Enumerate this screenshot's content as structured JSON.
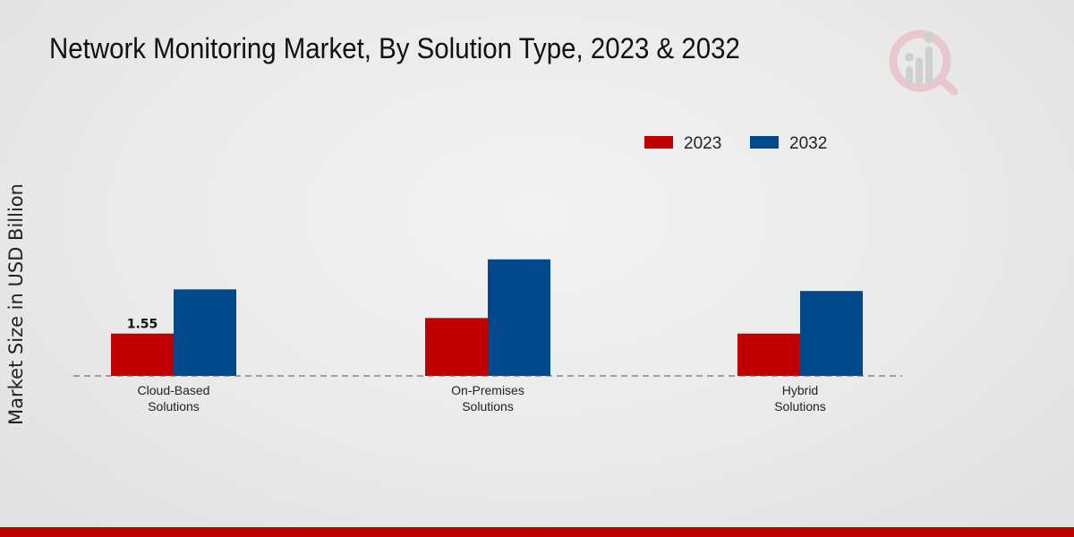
{
  "chart_data": {
    "type": "bar",
    "title": "Network Monitoring Market, By Solution Type, 2023 & 2032",
    "ylabel": "Market Size in USD Billion",
    "xlabel": "",
    "categories": [
      "Cloud-Based Solutions",
      "On-Premises Solutions",
      "Hybrid Solutions"
    ],
    "series": [
      {
        "name": "2023",
        "color": "#c00000",
        "values": [
          1.55,
          2.12,
          1.55
        ]
      },
      {
        "name": "2032",
        "color": "#004a8c",
        "values": [
          3.17,
          4.27,
          3.11
        ]
      }
    ],
    "data_labels": [
      {
        "series": 0,
        "index": 0,
        "text": "1.55"
      }
    ],
    "ylim": [
      0,
      10
    ],
    "grid": false,
    "legend": "top-right",
    "baseline": "dashed"
  },
  "logo": {
    "icon": "market-research-logo-icon"
  }
}
